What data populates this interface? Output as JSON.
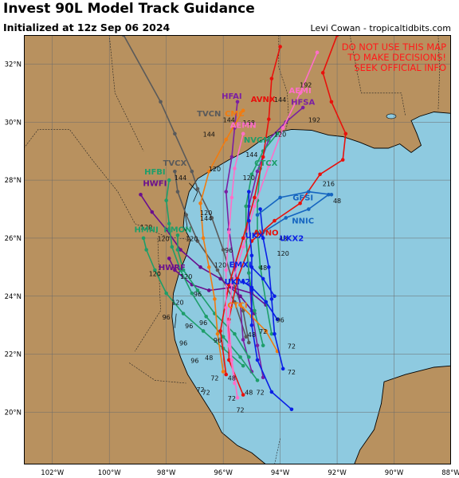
{
  "header": {
    "title": "Invest 90L Model Track Guidance",
    "init": "Initialized at 12z Sep 06 2024",
    "credit": "Levi Cowan - tropicaltidbits.com"
  },
  "warning": {
    "lines": [
      "DO NOT USE THIS MAP",
      "TO MAKE DECISIONS!",
      "SEEK OFFICIAL INFO"
    ],
    "color": "#ff1a1a"
  },
  "map": {
    "extent": {
      "lon": [
        -103,
        -88
      ],
      "lat": [
        18.2,
        33
      ]
    },
    "colors": {
      "land": "#b8915f",
      "water": "#8ecae0",
      "grid": "#6b6b6b",
      "coast": "#000000"
    },
    "lon_ticks": [
      {
        "v": -102,
        "label": "102°W"
      },
      {
        "v": -100,
        "label": "100°W"
      },
      {
        "v": -98,
        "label": "98°W"
      },
      {
        "v": -96,
        "label": "96°W"
      },
      {
        "v": -94,
        "label": "94°W"
      },
      {
        "v": -92,
        "label": "92°W"
      },
      {
        "v": -90,
        "label": "90°W"
      },
      {
        "v": -88,
        "label": "88°W"
      }
    ],
    "lat_ticks": [
      {
        "v": 20,
        "label": "20°N"
      },
      {
        "v": 22,
        "label": "22°N"
      },
      {
        "v": 24,
        "label": "24°N"
      },
      {
        "v": 26,
        "label": "26°N"
      },
      {
        "v": 28,
        "label": "28°N"
      },
      {
        "v": 30,
        "label": "30°N"
      },
      {
        "v": 32,
        "label": "32°N"
      }
    ]
  },
  "tracks": [
    {
      "name": "TVCN",
      "color": "#5a5a5a",
      "label": [
        -96.5,
        30.2
      ],
      "pts": [
        [
          -95.1,
          22.4
        ],
        [
          -95.3,
          23.5
        ],
        [
          -95.7,
          24.6
        ],
        [
          -96.0,
          25.6
        ],
        [
          -96.4,
          26.7
        ],
        [
          -96.9,
          27.7
        ],
        [
          -97.1,
          28.3
        ],
        [
          -97.7,
          29.6
        ],
        [
          -98.2,
          30.7
        ],
        [
          -99.5,
          33.0
        ]
      ]
    },
    {
      "name": "TVCX",
      "color": "#5a5a5a",
      "label": [
        -97.7,
        28.5
      ],
      "pts": [
        [
          -95.2,
          22.6
        ],
        [
          -95.6,
          23.8
        ],
        [
          -96.2,
          24.9
        ],
        [
          -96.9,
          25.9
        ],
        [
          -97.3,
          26.8
        ],
        [
          -97.6,
          27.6
        ],
        [
          -97.7,
          28.3
        ]
      ]
    },
    {
      "name": "HFAI",
      "color": "#7b1fa2",
      "label": [
        -95.7,
        30.8
      ],
      "pts": [
        [
          -95.0,
          21.4
        ],
        [
          -95.3,
          22.5
        ],
        [
          -95.4,
          23.7
        ],
        [
          -95.6,
          25.0
        ],
        [
          -95.8,
          26.3
        ],
        [
          -95.9,
          27.6
        ],
        [
          -95.7,
          28.8
        ],
        [
          -95.6,
          29.8
        ],
        [
          -95.5,
          30.7
        ]
      ]
    },
    {
      "name": "HFSA",
      "color": "#7b1fa2",
      "label": [
        -93.2,
        30.6
      ],
      "pts": [
        [
          -94.6,
          21.2
        ],
        [
          -94.8,
          22.3
        ],
        [
          -95.0,
          23.5
        ],
        [
          -95.1,
          24.8
        ],
        [
          -95.2,
          26.0
        ],
        [
          -95.1,
          27.1
        ],
        [
          -94.8,
          28.3
        ],
        [
          -94.4,
          29.4
        ],
        [
          -93.8,
          30.0
        ],
        [
          -93.2,
          30.5
        ]
      ]
    },
    {
      "name": "HWFI",
      "color": "#6a0f8e",
      "label": [
        -98.4,
        27.8
      ],
      "pts": [
        [
          -94.9,
          23.4
        ],
        [
          -95.4,
          24.0
        ],
        [
          -96.1,
          24.6
        ],
        [
          -96.8,
          25.0
        ],
        [
          -97.5,
          25.6
        ],
        [
          -98.0,
          26.3
        ],
        [
          -98.5,
          26.9
        ],
        [
          -98.9,
          27.5
        ]
      ]
    },
    {
      "name": "HWRF",
      "color": "#6a0f8e",
      "label": [
        -97.8,
        24.9
      ],
      "pts": [
        [
          -94.5,
          23.7
        ],
        [
          -95.0,
          24.1
        ],
        [
          -95.7,
          24.3
        ],
        [
          -96.5,
          24.2
        ],
        [
          -97.1,
          24.4
        ],
        [
          -97.7,
          24.9
        ],
        [
          -97.9,
          25.3
        ]
      ]
    },
    {
      "name": "HFBI",
      "color": "#1e9e6a",
      "label": [
        -98.4,
        28.2
      ],
      "pts": [
        [
          -94.8,
          21.1
        ],
        [
          -95.4,
          21.9
        ],
        [
          -96.0,
          22.6
        ],
        [
          -96.6,
          23.3
        ],
        [
          -97.1,
          24.1
        ],
        [
          -97.5,
          24.9
        ],
        [
          -97.8,
          25.7
        ],
        [
          -97.9,
          26.5
        ],
        [
          -98.0,
          27.3
        ],
        [
          -97.9,
          28.0
        ]
      ]
    },
    {
      "name": "HMNI",
      "color": "#1e9e6a",
      "label": [
        -98.7,
        26.2
      ],
      "pts": [
        [
          -95.3,
          21.6
        ],
        [
          -96.0,
          22.2
        ],
        [
          -96.7,
          22.8
        ],
        [
          -97.4,
          23.4
        ],
        [
          -98.0,
          24.1
        ],
        [
          -98.4,
          24.9
        ],
        [
          -98.7,
          25.6
        ],
        [
          -98.8,
          26.0
        ]
      ]
    },
    {
      "name": "HMON",
      "color": "#1e9e6a",
      "label": [
        -97.6,
        26.2
      ],
      "pts": [
        [
          -95.1,
          21.9
        ],
        [
          -95.6,
          22.7
        ],
        [
          -96.3,
          23.4
        ],
        [
          -96.9,
          24.2
        ],
        [
          -97.4,
          24.9
        ],
        [
          -97.6,
          25.6
        ],
        [
          -97.6,
          26.1
        ]
      ]
    },
    {
      "name": "NVGM",
      "color": "#1e9e6a",
      "label": [
        -94.8,
        29.3
      ],
      "pts": [
        [
          -94.6,
          22.3
        ],
        [
          -94.9,
          23.5
        ],
        [
          -95.1,
          24.8
        ],
        [
          -95.2,
          26.0
        ],
        [
          -95.2,
          27.1
        ],
        [
          -95.0,
          28.2
        ],
        [
          -94.6,
          29.0
        ],
        [
          -94.1,
          29.6
        ]
      ]
    },
    {
      "name": "CTCX",
      "color": "#1e9e6a",
      "label": [
        -94.5,
        28.5
      ],
      "pts": [
        [
          -94.3,
          22.7
        ],
        [
          -94.5,
          23.8
        ],
        [
          -94.7,
          25.0
        ],
        [
          -94.8,
          26.2
        ],
        [
          -94.8,
          27.3
        ],
        [
          -94.7,
          28.4
        ]
      ]
    },
    {
      "name": "AVNO",
      "color": "#e8110c",
      "label": [
        -94.5,
        26.1
      ],
      "pts": [
        [
          -95.3,
          20.6
        ],
        [
          -95.8,
          21.8
        ],
        [
          -95.8,
          23.2
        ],
        [
          -95.5,
          24.6
        ],
        [
          -95.0,
          25.9
        ],
        [
          -94.2,
          26.6
        ],
        [
          -93.3,
          27.2
        ],
        [
          -92.6,
          28.2
        ],
        [
          -91.8,
          28.7
        ],
        [
          -91.7,
          29.6
        ],
        [
          -92.2,
          30.7
        ],
        [
          -92.5,
          31.7
        ],
        [
          -92.0,
          33.0
        ]
      ]
    },
    {
      "name": "AVNX",
      "color": "#e8110c",
      "label": [
        -94.6,
        30.7
      ],
      "pts": [
        [
          -95.9,
          21.3
        ],
        [
          -96.1,
          22.8
        ],
        [
          -95.8,
          24.4
        ],
        [
          -95.3,
          26.0
        ],
        [
          -94.9,
          27.4
        ],
        [
          -94.6,
          28.8
        ],
        [
          -94.4,
          30.1
        ],
        [
          -94.3,
          31.5
        ],
        [
          -94.0,
          32.6
        ]
      ]
    },
    {
      "name": "AEMI",
      "color": "#ff6fc8",
      "label": [
        -93.3,
        31.0
      ],
      "pts": [
        [
          -95.5,
          20.5
        ],
        [
          -95.7,
          21.8
        ],
        [
          -95.8,
          23.1
        ],
        [
          -95.7,
          24.4
        ],
        [
          -95.3,
          25.7
        ],
        [
          -94.9,
          27.1
        ],
        [
          -94.4,
          28.5
        ],
        [
          -93.9,
          29.8
        ],
        [
          -93.3,
          31.0
        ],
        [
          -92.7,
          32.4
        ]
      ]
    },
    {
      "name": "AEMN",
      "color": "#ff6fc8",
      "label": [
        -95.3,
        29.8
      ],
      "pts": [
        [
          -95.6,
          21.0
        ],
        [
          -95.8,
          22.3
        ],
        [
          -95.9,
          23.6
        ],
        [
          -95.9,
          24.9
        ],
        [
          -95.8,
          26.2
        ],
        [
          -95.7,
          27.4
        ],
        [
          -95.6,
          28.4
        ],
        [
          -95.3,
          29.6
        ]
      ]
    },
    {
      "name": "CMC",
      "color": "#f27b0f",
      "label": [
        -95.6,
        30.2
      ],
      "pts": [
        [
          -96.0,
          21.4
        ],
        [
          -96.2,
          22.7
        ],
        [
          -96.3,
          23.9
        ],
        [
          -96.5,
          25.0
        ],
        [
          -96.7,
          26.0
        ],
        [
          -96.8,
          27.2
        ],
        [
          -96.5,
          28.3
        ],
        [
          -95.9,
          29.4
        ],
        [
          -95.3,
          30.4
        ]
      ]
    },
    {
      "name": "CTCI",
      "color": "#f27b0f",
      "label": [
        -95.5,
        23.6
      ],
      "pts": [
        [
          -94.1,
          22.1
        ],
        [
          -94.5,
          22.8
        ],
        [
          -95.0,
          23.3
        ],
        [
          -95.4,
          23.7
        ]
      ]
    },
    {
      "name": "UKX",
      "color": "#0a1fe6",
      "label": [
        -94.9,
        26.0
      ],
      "pts": [
        [
          -93.6,
          20.1
        ],
        [
          -94.3,
          20.7
        ],
        [
          -94.8,
          21.8
        ],
        [
          -95.0,
          23.0
        ],
        [
          -95.0,
          24.2
        ],
        [
          -95.0,
          25.4
        ],
        [
          -95.1,
          26.6
        ],
        [
          -95.1,
          27.6
        ]
      ]
    },
    {
      "name": "UKX2",
      "color": "#0a1fe6",
      "label": [
        -93.6,
        25.9
      ],
      "pts": [
        [
          -93.9,
          21.5
        ],
        [
          -94.2,
          22.7
        ],
        [
          -94.3,
          23.9
        ],
        [
          -94.4,
          25.0
        ],
        [
          -94.6,
          26.0
        ],
        [
          -94.7,
          27.0
        ]
      ]
    },
    {
      "name": "UKM2",
      "color": "#0a1fe6",
      "label": [
        -95.5,
        24.4
      ],
      "pts": [
        [
          -94.1,
          23.2
        ],
        [
          -94.5,
          23.8
        ],
        [
          -95.0,
          24.3
        ],
        [
          -95.3,
          24.5
        ]
      ]
    },
    {
      "name": "EMXI",
      "color": "#0a1fe6",
      "label": [
        -95.4,
        25.0
      ],
      "pts": [
        [
          -94.2,
          24.0
        ],
        [
          -94.6,
          24.6
        ],
        [
          -95.0,
          25.0
        ]
      ]
    },
    {
      "name": "NNIC",
      "color": "#1565c0",
      "label": [
        -93.2,
        26.5
      ],
      "pts": [
        [
          -94.6,
          26.2
        ],
        [
          -93.8,
          26.7
        ],
        [
          -93.0,
          27.0
        ],
        [
          -92.3,
          27.5
        ]
      ]
    },
    {
      "name": "GFSI",
      "color": "#1565c0",
      "label": [
        -93.2,
        27.3
      ],
      "pts": [
        [
          -94.8,
          26.8
        ],
        [
          -94.0,
          27.4
        ],
        [
          -93.0,
          27.6
        ],
        [
          -92.2,
          27.5
        ]
      ]
    }
  ],
  "hour_labels": [
    {
      "text": "168",
      "pos": [
        -95.1,
        29.9
      ]
    },
    {
      "text": "144",
      "pos": [
        -96.5,
        29.5
      ]
    },
    {
      "text": "144",
      "pos": [
        -95.8,
        30.0
      ]
    },
    {
      "text": "144",
      "pos": [
        -94.0,
        30.7
      ]
    },
    {
      "text": "144",
      "pos": [
        -95.0,
        28.8
      ]
    },
    {
      "text": "144",
      "pos": [
        -97.5,
        28.0
      ]
    },
    {
      "text": "144",
      "pos": [
        -96.6,
        26.6
      ]
    },
    {
      "text": "192",
      "pos": [
        -92.8,
        30.0
      ]
    },
    {
      "text": "192",
      "pos": [
        -93.1,
        31.2
      ]
    },
    {
      "text": "216",
      "pos": [
        -92.3,
        27.8
      ]
    },
    {
      "text": "120",
      "pos": [
        -94.0,
        29.5
      ]
    },
    {
      "text": "120",
      "pos": [
        -96.3,
        28.3
      ]
    },
    {
      "text": "120",
      "pos": [
        -95.1,
        28.0
      ]
    },
    {
      "text": "120",
      "pos": [
        -96.6,
        26.8
      ]
    },
    {
      "text": "120",
      "pos": [
        -98.7,
        26.3
      ]
    },
    {
      "text": "120",
      "pos": [
        -98.1,
        25.9
      ]
    },
    {
      "text": "120",
      "pos": [
        -97.1,
        25.9
      ]
    },
    {
      "text": "120",
      "pos": [
        -96.1,
        25.0
      ]
    },
    {
      "text": "120",
      "pos": [
        -97.3,
        24.6
      ]
    },
    {
      "text": "120",
      "pos": [
        -98.4,
        24.7
      ]
    },
    {
      "text": "120",
      "pos": [
        -93.9,
        25.4
      ]
    },
    {
      "text": "120",
      "pos": [
        -97.6,
        23.7
      ]
    },
    {
      "text": "96",
      "pos": [
        -95.8,
        25.5
      ]
    },
    {
      "text": "96",
      "pos": [
        -96.9,
        24.0
      ]
    },
    {
      "text": "96",
      "pos": [
        -96.7,
        23.0
      ]
    },
    {
      "text": "96",
      "pos": [
        -98.0,
        23.2
      ]
    },
    {
      "text": "96",
      "pos": [
        -97.2,
        22.9
      ]
    },
    {
      "text": "96",
      "pos": [
        -97.4,
        22.3
      ]
    },
    {
      "text": "96",
      "pos": [
        -97.0,
        21.7
      ]
    },
    {
      "text": "96",
      "pos": [
        -96.2,
        22.4
      ]
    },
    {
      "text": "96",
      "pos": [
        -94.0,
        23.1
      ]
    },
    {
      "text": "48",
      "pos": [
        -92.0,
        27.2
      ]
    },
    {
      "text": "48",
      "pos": [
        -94.6,
        24.9
      ]
    },
    {
      "text": "48",
      "pos": [
        -93.9,
        25.9
      ]
    },
    {
      "text": "48",
      "pos": [
        -96.5,
        21.8
      ]
    },
    {
      "text": "48",
      "pos": [
        -95.0,
        22.6
      ]
    },
    {
      "text": "48",
      "pos": [
        -95.7,
        21.1
      ]
    },
    {
      "text": "48",
      "pos": [
        -95.1,
        20.6
      ]
    },
    {
      "text": "72",
      "pos": [
        -93.6,
        22.2
      ]
    },
    {
      "text": "72",
      "pos": [
        -93.6,
        21.3
      ]
    },
    {
      "text": "72",
      "pos": [
        -96.3,
        21.1
      ]
    },
    {
      "text": "72",
      "pos": [
        -96.8,
        20.7
      ]
    },
    {
      "text": "72",
      "pos": [
        -96.6,
        20.6
      ]
    },
    {
      "text": "72",
      "pos": [
        -95.7,
        20.4
      ]
    },
    {
      "text": "72",
      "pos": [
        -95.4,
        20.0
      ]
    },
    {
      "text": "72",
      "pos": [
        -94.6,
        22.7
      ]
    },
    {
      "text": "72",
      "pos": [
        -94.7,
        20.6
      ]
    }
  ]
}
